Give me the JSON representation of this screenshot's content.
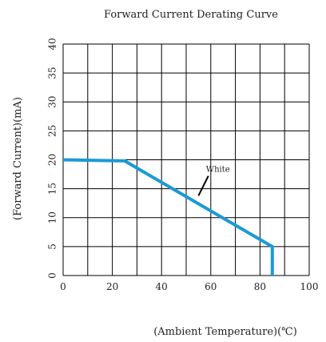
{
  "colors": {
    "grid": "#000000",
    "series": "#1a9ad6",
    "annotation_line": "#000000",
    "text": "#222222"
  },
  "chart_data": {
    "type": "line",
    "title": "Forward Current Derating Curve",
    "xlabel": "(Ambient Temperature)(℃)",
    "ylabel": "(Forward Current)(mA)",
    "xlim": [
      0,
      100
    ],
    "ylim": [
      0,
      40
    ],
    "xticks": [
      0,
      20,
      40,
      60,
      80,
      100
    ],
    "yticks": [
      0,
      5,
      10,
      15,
      20,
      25,
      30,
      35,
      40
    ],
    "x_gridlines": [
      0,
      10,
      20,
      30,
      40,
      50,
      60,
      70,
      80,
      90,
      100
    ],
    "y_gridlines": [
      0,
      5,
      10,
      15,
      20,
      25,
      30,
      35,
      40
    ],
    "grid": true,
    "series": [
      {
        "x": [
          0,
          25,
          85,
          85
        ],
        "y": [
          20,
          19.8,
          5,
          0
        ]
      }
    ],
    "annotations": [
      {
        "text": "White",
        "x": 60,
        "y": 17.5,
        "pointer_from": [
          59,
          17.2
        ],
        "pointer_to": [
          55,
          13.8
        ]
      }
    ]
  }
}
